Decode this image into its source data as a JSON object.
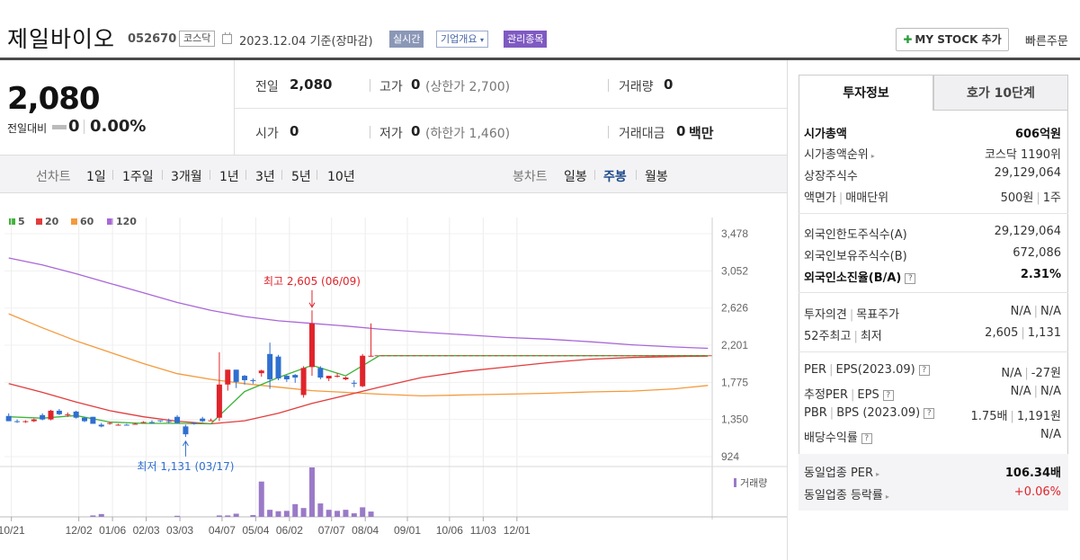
{
  "header": {
    "company_name": "제일바이오",
    "code": "052670",
    "market": "코스닥",
    "date": "2023.12.04",
    "date_suffix": "기준(장마감)",
    "realtime": "실시간",
    "company_overview": "기업개요",
    "managed": "관리종목",
    "my_stock": "MY STOCK 추가",
    "quick_order": "빠른주문"
  },
  "price": {
    "current": "2,080",
    "change_label": "전일대비",
    "change_value": "0",
    "change_rate": "0.00%"
  },
  "quote": {
    "prev_label": "전일",
    "prev": "2,080",
    "high_label": "고가",
    "high": "0",
    "upper_limit": "(상한가 2,700)",
    "volume_label": "거래량",
    "volume": "0",
    "open_label": "시가",
    "open": "0",
    "low_label": "저가",
    "low": "0",
    "lower_limit": "(하한가 1,460)",
    "amount_label": "거래대금",
    "amount": "0",
    "amount_unit": "백만"
  },
  "period_bar": {
    "line_label": "선차트",
    "line_items": [
      "1일",
      "1주일",
      "3개월",
      "1년",
      "3년",
      "5년",
      "10년"
    ],
    "candle_label": "봉차트",
    "candle_items": [
      "일봉",
      "주봉",
      "월봉"
    ],
    "active_candle": "주봉"
  },
  "chart_data": {
    "type": "candlestick",
    "legend": [
      {
        "name": "5",
        "color": "#3fb33a"
      },
      {
        "name": "20",
        "color": "#e23c3c"
      },
      {
        "name": "60",
        "color": "#f39a3c"
      },
      {
        "name": "120",
        "color": "#a967d8"
      }
    ],
    "y_ticks": [
      "3,478",
      "3,052",
      "2,626",
      "2,201",
      "1,775",
      "1,350",
      "924"
    ],
    "y_tick_values": [
      3478,
      3052,
      2626,
      2201,
      1775,
      1350,
      924
    ],
    "x_ticks": [
      "10/21",
      "12/02",
      "01/06",
      "02/03",
      "03/03",
      "04/07",
      "05/04",
      "06/02",
      "07/07",
      "08/04",
      "09/01",
      "10/06",
      "11/03",
      "12/01"
    ],
    "high_annotation": "최고 2,605 (06/09)",
    "low_annotation": "최저 1,131 (03/17)",
    "high_value": 2605,
    "low_value": 1131,
    "volume_label": "거래량",
    "candles": [
      [
        1390,
        1420,
        1330,
        1330
      ],
      [
        1330,
        1350,
        1310,
        1320
      ],
      [
        1320,
        1340,
        1310,
        1330
      ],
      [
        1330,
        1360,
        1320,
        1350
      ],
      [
        1400,
        1420,
        1340,
        1350
      ],
      [
        1350,
        1460,
        1340,
        1450
      ],
      [
        1450,
        1470,
        1400,
        1410
      ],
      [
        1400,
        1430,
        1380,
        1410
      ],
      [
        1440,
        1450,
        1360,
        1370
      ],
      [
        1370,
        1380,
        1320,
        1330
      ],
      [
        1380,
        1380,
        1300,
        1300
      ],
      [
        1290,
        1310,
        1260,
        1270
      ],
      [
        1300,
        1320,
        1290,
        1310
      ],
      [
        1290,
        1300,
        1280,
        1290
      ],
      [
        1290,
        1300,
        1280,
        1280
      ],
      [
        1300,
        1310,
        1290,
        1300
      ],
      [
        1320,
        1330,
        1310,
        1320
      ],
      [
        1320,
        1340,
        1300,
        1310
      ],
      [
        1340,
        1340,
        1320,
        1330
      ],
      [
        1330,
        1360,
        1310,
        1320
      ],
      [
        1380,
        1400,
        1300,
        1310
      ],
      [
        1270,
        1290,
        1150,
        1180
      ],
      [
        1310,
        1320,
        1290,
        1300
      ],
      [
        1360,
        1380,
        1320,
        1330
      ],
      [
        1340,
        1360,
        1330,
        1340
      ],
      [
        1370,
        2120,
        1330,
        1750
      ],
      [
        1750,
        1920,
        1680,
        1920
      ],
      [
        1920,
        1920,
        1710,
        1780
      ],
      [
        1850,
        1860,
        1750,
        1800
      ],
      [
        1800,
        1820,
        1760,
        1790
      ],
      [
        1880,
        1920,
        1840,
        1910
      ],
      [
        2100,
        2230,
        1700,
        1810
      ],
      [
        2070,
        2090,
        1800,
        1820
      ],
      [
        1850,
        1860,
        1780,
        1810
      ],
      [
        1860,
        1870,
        1770,
        1830
      ],
      [
        1630,
        1960,
        1600,
        1940
      ],
      [
        1950,
        2600,
        1850,
        2450
      ],
      [
        1940,
        1960,
        1810,
        1830
      ],
      [
        1820,
        1850,
        1790,
        1850
      ],
      [
        1840,
        1880,
        1830,
        1850
      ],
      [
        1810,
        1840,
        1800,
        1830
      ],
      [
        1770,
        1800,
        1720,
        1760
      ],
      [
        1730,
        2100,
        1720,
        2080
      ],
      [
        2080,
        2450,
        2070,
        2080
      ]
    ],
    "ma5": [
      [
        0,
        1380
      ],
      [
        4,
        1365
      ],
      [
        8,
        1395
      ],
      [
        12,
        1320
      ],
      [
        16,
        1305
      ],
      [
        20,
        1305
      ],
      [
        24,
        1300
      ],
      [
        28,
        1670
      ],
      [
        32,
        1830
      ],
      [
        36,
        1970
      ],
      [
        40,
        1850
      ],
      [
        44,
        2080
      ],
      [
        49,
        2080
      ],
      [
        54,
        2080
      ],
      [
        59,
        2080
      ],
      [
        64,
        2080
      ],
      [
        69,
        2080
      ],
      [
        74,
        2080
      ],
      [
        79,
        2080
      ],
      [
        83,
        2080
      ]
    ],
    "ma20": [
      [
        0,
        1760
      ],
      [
        4,
        1660
      ],
      [
        8,
        1550
      ],
      [
        12,
        1450
      ],
      [
        16,
        1380
      ],
      [
        20,
        1330
      ],
      [
        24,
        1300
      ],
      [
        28,
        1335
      ],
      [
        32,
        1420
      ],
      [
        36,
        1535
      ],
      [
        40,
        1625
      ],
      [
        44,
        1720
      ],
      [
        49,
        1830
      ],
      [
        54,
        1900
      ],
      [
        59,
        1950
      ],
      [
        64,
        2000
      ],
      [
        69,
        2040
      ],
      [
        74,
        2060
      ],
      [
        79,
        2070
      ],
      [
        83,
        2075
      ]
    ],
    "ma60": [
      [
        0,
        2560
      ],
      [
        4,
        2400
      ],
      [
        8,
        2250
      ],
      [
        12,
        2120
      ],
      [
        16,
        1990
      ],
      [
        20,
        1875
      ],
      [
        24,
        1810
      ],
      [
        28,
        1760
      ],
      [
        32,
        1720
      ],
      [
        36,
        1680
      ],
      [
        40,
        1660
      ],
      [
        44,
        1640
      ],
      [
        49,
        1620
      ],
      [
        54,
        1630
      ],
      [
        59,
        1640
      ],
      [
        64,
        1650
      ],
      [
        69,
        1665
      ],
      [
        74,
        1675
      ],
      [
        79,
        1700
      ],
      [
        83,
        1740
      ]
    ],
    "ma120": [
      [
        0,
        3200
      ],
      [
        4,
        3120
      ],
      [
        8,
        3020
      ],
      [
        12,
        2910
      ],
      [
        16,
        2800
      ],
      [
        20,
        2690
      ],
      [
        24,
        2600
      ],
      [
        28,
        2530
      ],
      [
        32,
        2480
      ],
      [
        36,
        2450
      ],
      [
        40,
        2420
      ],
      [
        44,
        2385
      ],
      [
        49,
        2350
      ],
      [
        54,
        2320
      ],
      [
        59,
        2290
      ],
      [
        64,
        2270
      ],
      [
        69,
        2240
      ],
      [
        74,
        2205
      ],
      [
        79,
        2180
      ],
      [
        83,
        2165
      ]
    ],
    "volume": [
      [
        10,
        0.04
      ],
      [
        11,
        0.08
      ],
      [
        20,
        0.03
      ],
      [
        25,
        0.04
      ],
      [
        26,
        0.04
      ],
      [
        27,
        0.09
      ],
      [
        29,
        0.05
      ],
      [
        30,
        1.0
      ],
      [
        31,
        0.2
      ],
      [
        32,
        0.16
      ],
      [
        33,
        0.17
      ],
      [
        34,
        0.36
      ],
      [
        35,
        0.25
      ],
      [
        36,
        1.4
      ],
      [
        37,
        0.38
      ],
      [
        38,
        0.2
      ],
      [
        39,
        0.17
      ],
      [
        40,
        0.2
      ],
      [
        41,
        0.1
      ],
      [
        42,
        0.27
      ],
      [
        43,
        0.15
      ]
    ]
  },
  "right": {
    "tab_active": "투자정보",
    "tab_other": "호가 10단계",
    "rows": [
      {
        "lbl": "시가총액",
        "val": "606억원",
        "bold": true
      },
      {
        "lbl": "시가총액순위",
        "val": "코스닥 1190위",
        "arrow": true
      },
      {
        "lbl": "상장주식수",
        "val": "29,129,064"
      },
      {
        "lbl": "액면가",
        "lbl2": "매매단위",
        "val": "500원",
        "val2": "1주"
      },
      {
        "lbl": "외국인한도주식수(A)",
        "val": "29,129,064"
      },
      {
        "lbl": "외국인보유주식수(B)",
        "val": "672,086"
      },
      {
        "lbl": "외국인소진율(B/A)",
        "val": "2.31%",
        "bold": true,
        "q": true
      },
      {
        "lbl": "투자의견",
        "lbl2": "목표주가",
        "val": "N/A",
        "val2": "N/A"
      },
      {
        "lbl": "52주최고",
        "lbl2": "최저",
        "val": "2,605",
        "val2": "1,131"
      },
      {
        "lbl": "PER",
        "lbl2": "EPS(2023.09)",
        "val": "N/A",
        "val2": "-27원",
        "q": true
      },
      {
        "lbl": "추정PER",
        "lbl2": "EPS",
        "val": "N/A",
        "val2": "N/A",
        "q": true
      },
      {
        "lbl": "PBR",
        "lbl2": "BPS (2023.09)",
        "val": "1.75배",
        "val2": "1,191원",
        "q": true
      },
      {
        "lbl": "배당수익률",
        "val": "N/A",
        "q": true
      },
      {
        "lbl": "동일업종 PER",
        "val": "106.34배",
        "bold_val": true,
        "arrow": true
      },
      {
        "lbl": "동일업종 등락률",
        "val": "+0.06%",
        "red": true,
        "arrow": true
      }
    ]
  }
}
